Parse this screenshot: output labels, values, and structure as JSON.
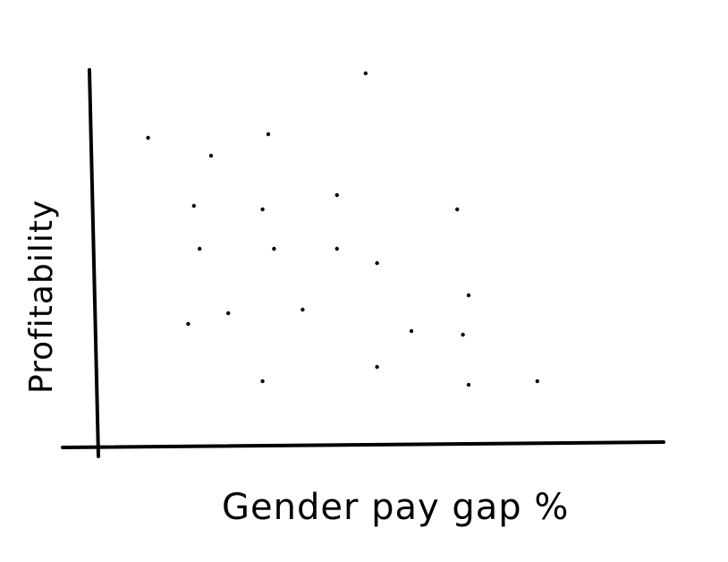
{
  "chart_data": {
    "type": "scatter",
    "title": "",
    "xlabel": "Gender pay gap %",
    "ylabel": "Profitability",
    "xlim": [
      0,
      100
    ],
    "ylim": [
      0,
      100
    ],
    "grid": false,
    "ticks": false,
    "series": [
      {
        "color": "#000000",
        "points": [
          {
            "x": 9,
            "y": 86
          },
          {
            "x": 20,
            "y": 81
          },
          {
            "x": 30,
            "y": 87
          },
          {
            "x": 47,
            "y": 104
          },
          {
            "x": 17,
            "y": 67
          },
          {
            "x": 29,
            "y": 66
          },
          {
            "x": 42,
            "y": 70
          },
          {
            "x": 63,
            "y": 66
          },
          {
            "x": 18,
            "y": 55
          },
          {
            "x": 31,
            "y": 55
          },
          {
            "x": 42,
            "y": 55
          },
          {
            "x": 49,
            "y": 51
          },
          {
            "x": 65,
            "y": 42
          },
          {
            "x": 16,
            "y": 34
          },
          {
            "x": 23,
            "y": 37
          },
          {
            "x": 36,
            "y": 38
          },
          {
            "x": 55,
            "y": 32
          },
          {
            "x": 64,
            "y": 31
          },
          {
            "x": 49,
            "y": 22
          },
          {
            "x": 29,
            "y": 18
          },
          {
            "x": 65,
            "y": 17
          },
          {
            "x": 77,
            "y": 18
          }
        ]
      }
    ]
  }
}
